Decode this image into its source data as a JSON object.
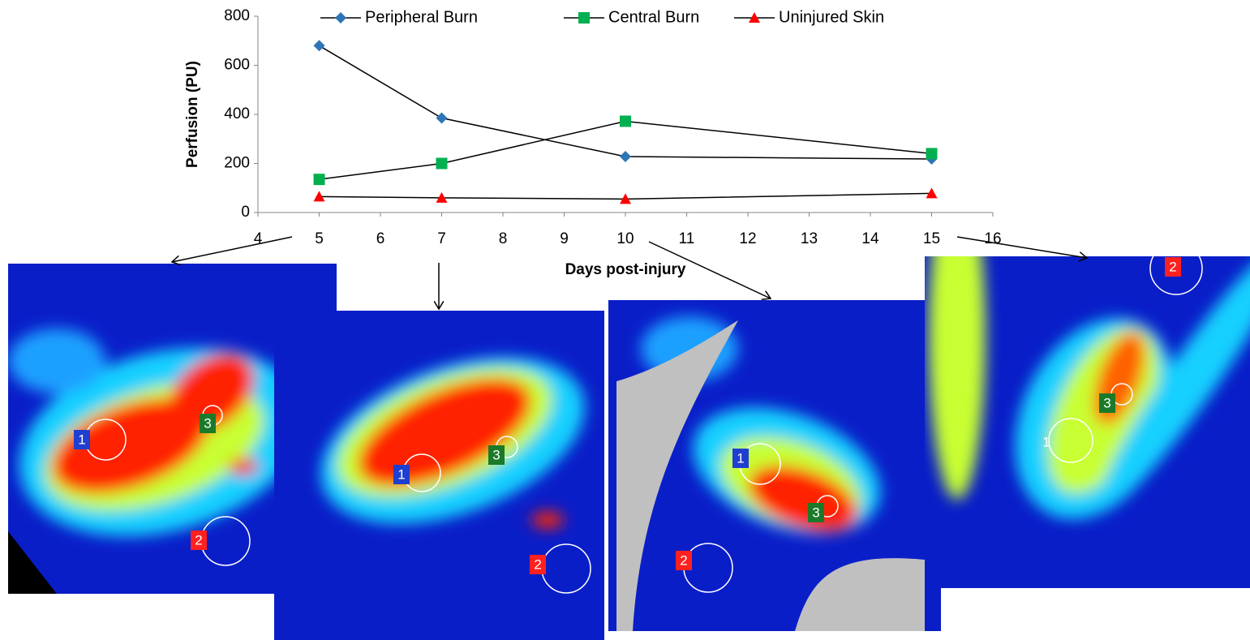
{
  "chart_data": {
    "type": "line",
    "x_label": "Days post-injury",
    "y_label": "Perfusion (PU)",
    "x": [
      5,
      7,
      10,
      15
    ],
    "series": [
      {
        "name": "Peripheral Burn",
        "color": "#2e75b6",
        "marker": "diamond",
        "values": [
          680,
          385,
          228,
          218
        ]
      },
      {
        "name": "Central Burn",
        "color": "#00b050",
        "marker": "square",
        "values": [
          135,
          200,
          372,
          240
        ]
      },
      {
        "name": "Uninjured Skin",
        "color": "#ff0000",
        "marker": "triangle",
        "values": [
          65,
          60,
          55,
          78
        ]
      }
    ],
    "line_color": "#000000",
    "xlim": [
      4,
      16
    ],
    "xticks": [
      4,
      5,
      6,
      7,
      8,
      9,
      10,
      11,
      12,
      13,
      14,
      15,
      16
    ],
    "ylim": [
      0,
      800
    ],
    "yticks": [
      0,
      200,
      400,
      600,
      800
    ],
    "grid": false,
    "legend": "top"
  },
  "panels": [
    {
      "labels": [
        "1",
        "3",
        "2"
      ]
    },
    {
      "labels": [
        "1",
        "3",
        "2"
      ]
    },
    {
      "labels": [
        "1",
        "3",
        "2"
      ]
    },
    {
      "labels": [
        "2",
        "3",
        "1"
      ]
    }
  ]
}
